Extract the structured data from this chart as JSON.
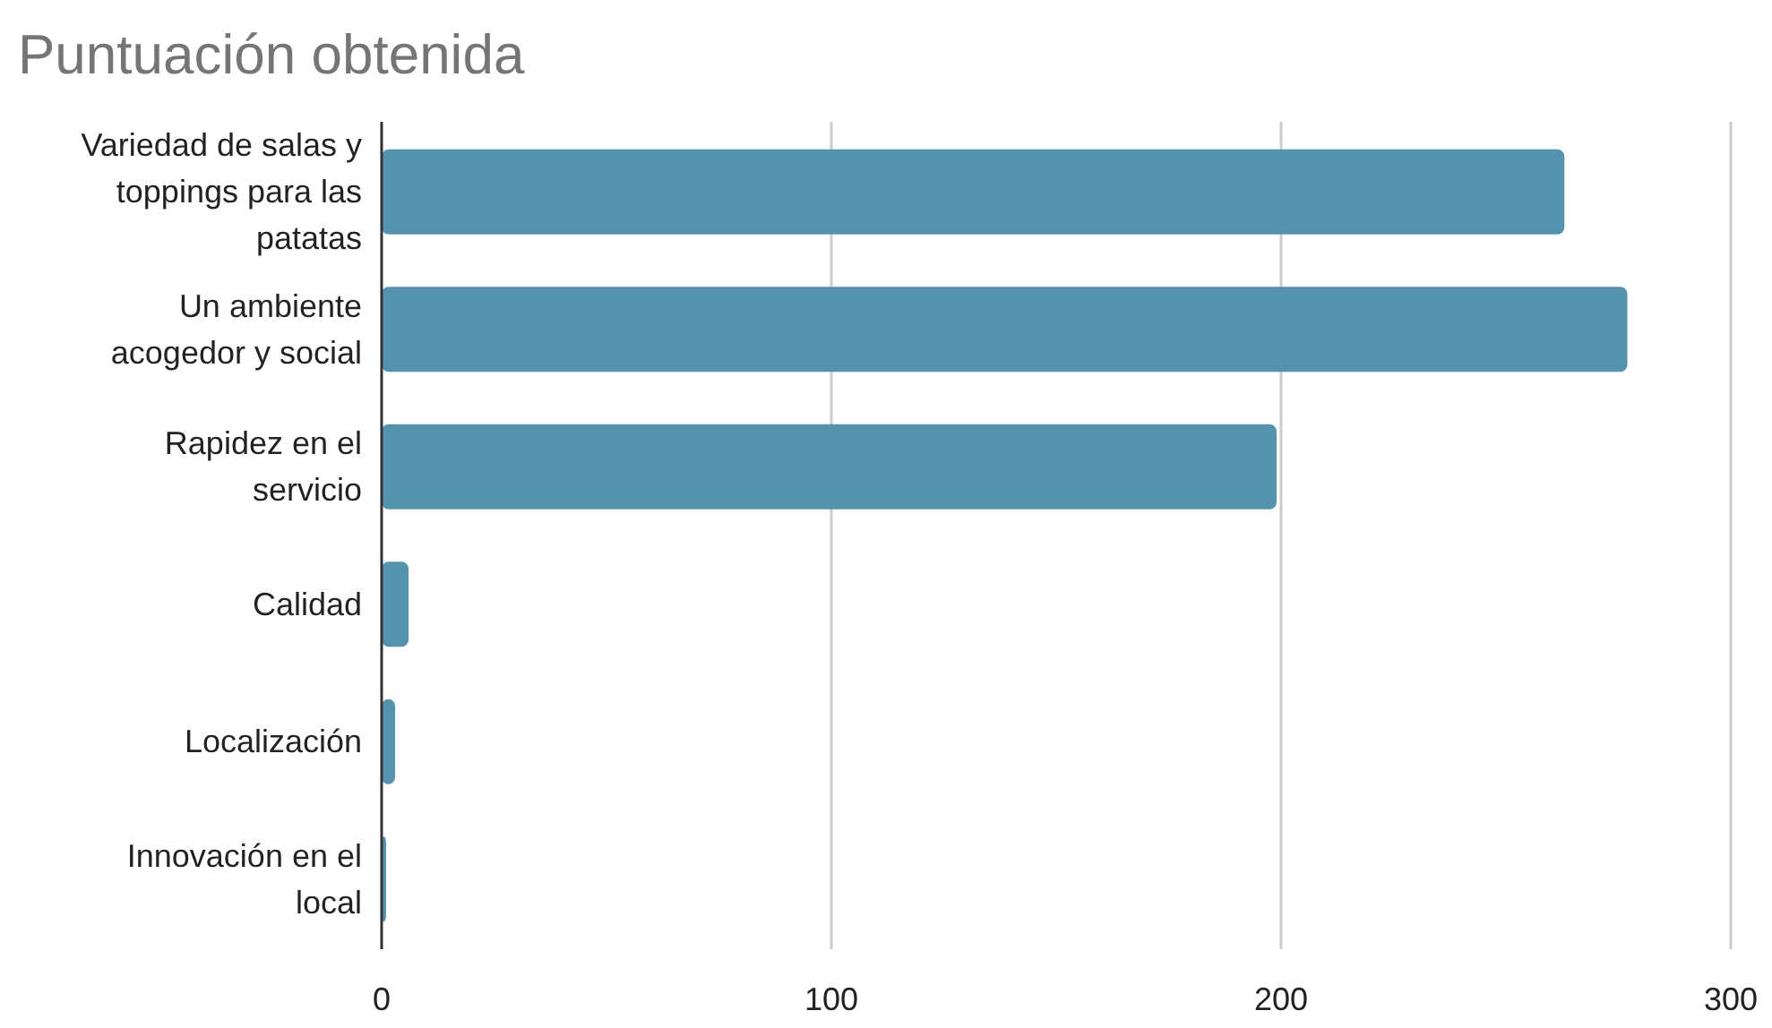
{
  "chart_data": {
    "type": "bar",
    "orientation": "horizontal",
    "title": "Puntuación obtenida",
    "categories": [
      "Variedad de salas y toppings para las patatas",
      "Un ambiente acogedor y social",
      "Rapidez en el servicio",
      "Calidad",
      "Localización",
      "Innovación en el local"
    ],
    "values": [
      263,
      277,
      199,
      6,
      3,
      1
    ],
    "color": "#5592ad",
    "xlim": [
      0,
      300
    ],
    "xticks": [
      0,
      100,
      200,
      300
    ],
    "grid": "x"
  }
}
